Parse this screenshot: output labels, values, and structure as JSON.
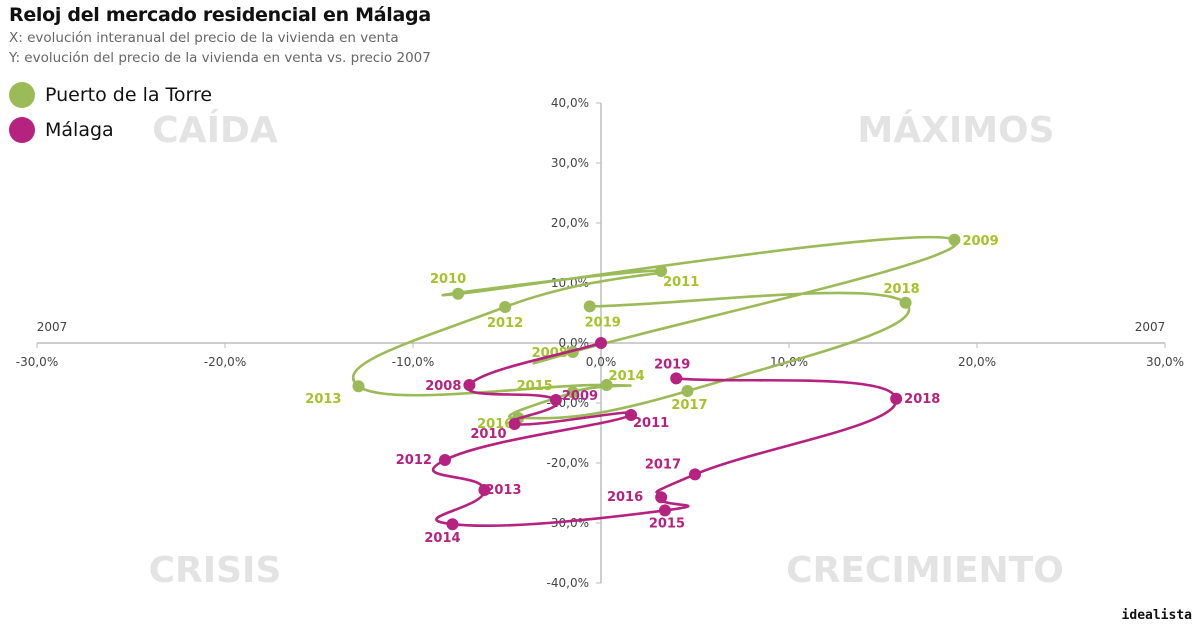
{
  "title": "Reloj del mercado residencial en Málaga",
  "subtitle_x": "X: evolución interanual del precio de la vivienda en venta",
  "subtitle_y": "Y: evolución del precio de la vivienda en venta vs. precio 2007",
  "brand": "idealista",
  "colors": {
    "puerto": "#9bbb59",
    "puerto_label": "#a5c22a",
    "malaga": "#b5227f",
    "axis": "#bdbdbd"
  },
  "chart_data": {
    "type": "scatter",
    "xlim": [
      -30,
      30
    ],
    "ylim": [
      -40,
      40
    ],
    "x_ticks": [
      "-30,0%",
      "-20,0%",
      "-10,0%",
      "0,0%",
      "10,0%",
      "20,0%",
      "30,0%"
    ],
    "y_ticks": [
      "40,0%",
      "30,0%",
      "20,0%",
      "10,0%",
      "0,0%",
      "-10,0%",
      "-20,0%",
      "-30,0%",
      "-40,0%"
    ],
    "axis_end_labels": {
      "left": "2007",
      "right": "2007"
    },
    "quadrants": {
      "top_left": "CAÍDA",
      "top_right": "MÁXIMOS",
      "bottom_left": "CRISIS",
      "bottom_right": "CRECIMIENTO"
    },
    "series": [
      {
        "name": "Puerto de la Torre",
        "points": [
          {
            "label": "2008",
            "x": -1.5,
            "y": -1.5
          },
          {
            "label": "2009",
            "x": 18.8,
            "y": 17.2
          },
          {
            "label": "2010",
            "x": -7.6,
            "y": 8.2
          },
          {
            "label": "2011",
            "x": 3.2,
            "y": 12.0
          },
          {
            "label": "2012",
            "x": -5.1,
            "y": 6.0
          },
          {
            "label": "2013",
            "x": -12.9,
            "y": -7.2
          },
          {
            "label": "2014",
            "x": 0.3,
            "y": -7.0
          },
          {
            "label": "2015",
            "x": -1.5,
            "y": -8.2
          },
          {
            "label": "2016",
            "x": -4.4,
            "y": -12.5
          },
          {
            "label": "2017",
            "x": 4.6,
            "y": -8.0
          },
          {
            "label": "2018",
            "x": 16.2,
            "y": 6.7
          },
          {
            "label": "2019",
            "x": -0.6,
            "y": 6.1
          }
        ]
      },
      {
        "name": "Málaga",
        "points": [
          {
            "label": "2007",
            "x": 0.0,
            "y": 0.0
          },
          {
            "label": "2008",
            "x": -7.0,
            "y": -7.0
          },
          {
            "label": "2009",
            "x": -2.4,
            "y": -9.5
          },
          {
            "label": "2010",
            "x": -4.6,
            "y": -13.5
          },
          {
            "label": "2011",
            "x": 1.6,
            "y": -12.0
          },
          {
            "label": "2012",
            "x": -8.3,
            "y": -19.5
          },
          {
            "label": "2013",
            "x": -6.2,
            "y": -24.5
          },
          {
            "label": "2014",
            "x": -7.9,
            "y": -30.2
          },
          {
            "label": "2015",
            "x": 3.4,
            "y": -27.9
          },
          {
            "label": "2016",
            "x": 3.2,
            "y": -25.7
          },
          {
            "label": "2017",
            "x": 5.0,
            "y": -21.9
          },
          {
            "label": "2018",
            "x": 15.7,
            "y": -9.3
          },
          {
            "label": "2019",
            "x": 4.0,
            "y": -5.9
          }
        ]
      }
    ]
  }
}
